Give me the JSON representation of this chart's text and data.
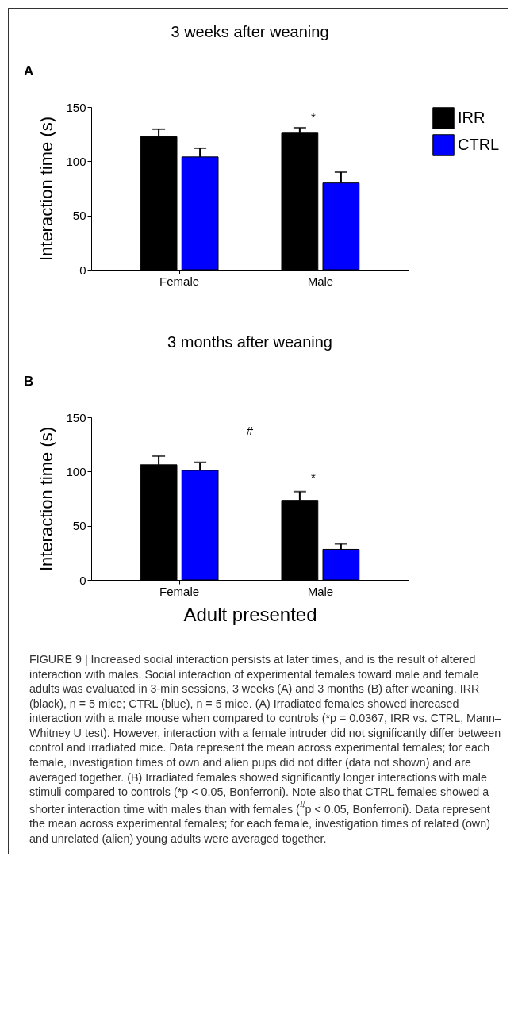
{
  "chart_data": [
    {
      "type": "bar",
      "title": "3 weeks after weaning",
      "ylabel": "Interaction time (s)",
      "categories": [
        "Female",
        "Male"
      ],
      "series": [
        {
          "name": "IRR",
          "color": "#000000",
          "values": [
            122.6,
            126
          ],
          "errors": [
            7,
            5
          ]
        },
        {
          "name": "CTRL",
          "color": "#0000ff",
          "values": [
            104,
            80
          ],
          "errors": [
            8,
            10
          ]
        }
      ],
      "ylim": [
        0,
        150
      ],
      "yticks": [
        0,
        50,
        100,
        150
      ],
      "grid": false,
      "legend": "top right",
      "annotations": [
        "A",
        "*"
      ]
    },
    {
      "type": "bar",
      "title": "3 months after weaning",
      "xlabel": "Adult presented",
      "ylabel": "Interaction time (s)",
      "categories": [
        "Female",
        "Male"
      ],
      "series": [
        {
          "name": "IRR",
          "color": "#000000",
          "values": [
            106.2,
            73.4
          ],
          "errors": [
            8,
            8
          ]
        },
        {
          "name": "CTRL",
          "color": "#0000ff",
          "values": [
            101,
            28.2
          ],
          "errors": [
            7.5,
            5
          ]
        }
      ],
      "ylim": [
        0,
        150
      ],
      "yticks": [
        0,
        50,
        100,
        150
      ],
      "grid": false,
      "annotations": [
        "B",
        "#",
        "*",
        "FIGURE 9 | Increased social interaction persists at later times, and is the result of altered interaction with males. Social interaction of experimental females toward male and female adults was evaluated in 3-min sessions, 3 weeks (A) and 3 months (B) after weaning. IRR (black), n = 5 mice; CTRL (blue), n = 5 mice. (A) Irradiated females showed increased interaction with a male mouse when compared to controls (*p = 0.0367, IRR vs. CTRL, Mann–Whitney U test). However, interaction with a female intruder did not significantly differ between control and irradiated mice. Data represent the mean across experimental females; for each female, investigation times of own and alien pups did not differ (data not shown) and are averaged together. (B) Irradiated females showed significantly longer interactions with male stimuli compared to controls (*p < 0.05, Bonferroni). Note also that CTRL females showed a shorter interaction time with males than with females ($^{#}$p < 0.05, Bonferroni). Data represent the mean across experimental females; for each female, investigation times of related (own) and unrelated (alien) young adults were averaged together."
      ]
    }
  ]
}
